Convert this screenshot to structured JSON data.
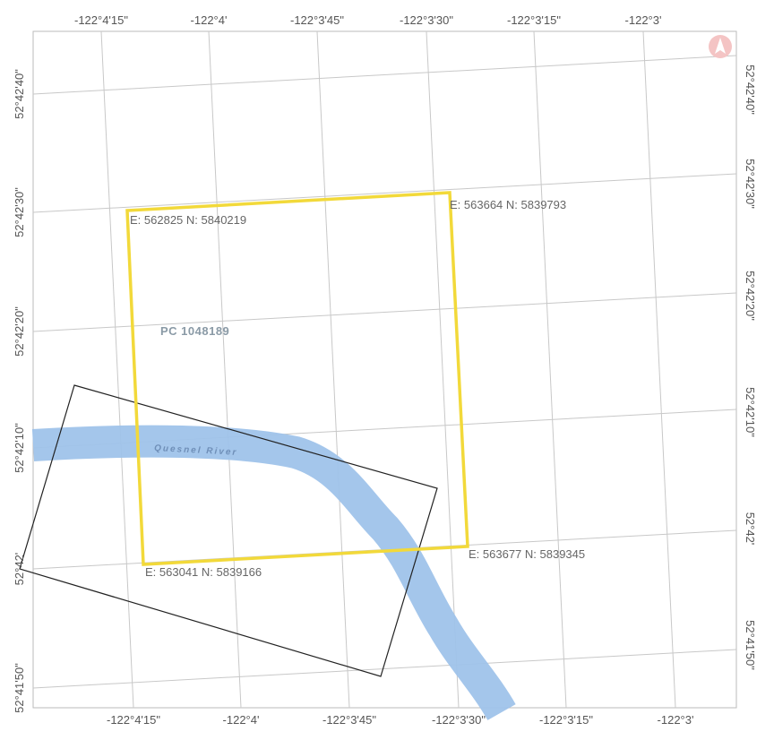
{
  "map": {
    "top_longitude_labels": [
      "-122°4'15\"",
      "-122°4'",
      "-122°3'45\"",
      "-122°3'30\"",
      "-122°3'15\"",
      "-122°3'"
    ],
    "bottom_longitude_labels": [
      "-122°4'15\"",
      "-122°4'",
      "-122°3'45\"",
      "-122°3'30\"",
      "-122°3'15\"",
      "-122°3'"
    ],
    "left_latitude_labels": [
      "52°42'40\"",
      "52°42'30\"",
      "52°42'20\"",
      "52°42'10\"",
      "52°42'",
      "52°41'50\""
    ],
    "right_latitude_labels": [
      "52°42'40\"",
      "52°42'30\"",
      "52°42'20\"",
      "52°42'10\"",
      "52°42'",
      "52°41'50\""
    ],
    "corner_coordinates": {
      "top_left": "E: 562825 N: 5840219",
      "top_right": "E: 563664 N: 5839793",
      "bottom_right": "E: 563677 N: 5839345",
      "bottom_left": "E: 563041 N: 5839166"
    },
    "parcel_label": "PC 1048189",
    "river_label": "Quesnel River",
    "colors": {
      "claim_boundary": "#f2d93a",
      "river": "#9fc3ea",
      "parcel_boundary": "#222222",
      "grid": "#c8c8c8",
      "north_arrow": "#e8a0a0"
    },
    "north_arrow_icon": "north-arrow-icon"
  }
}
